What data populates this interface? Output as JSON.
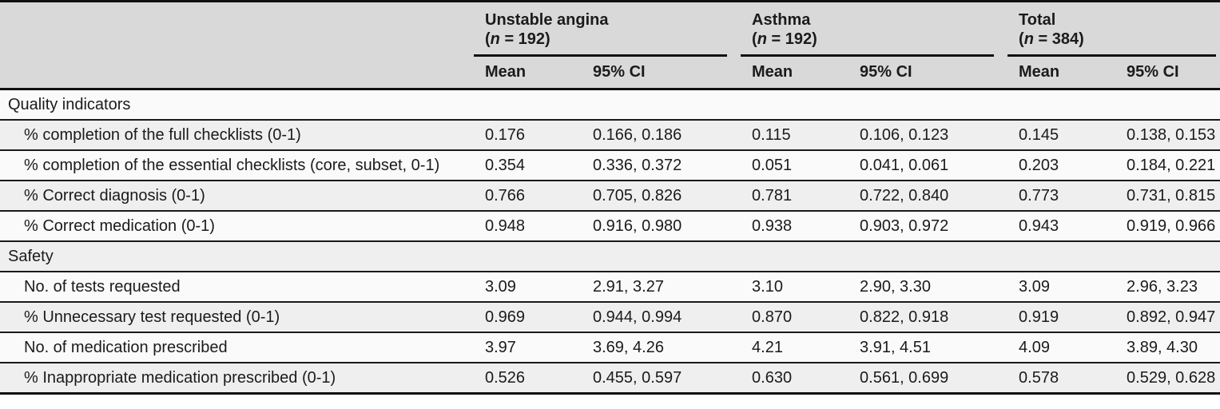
{
  "colors": {
    "header_bg": "#d9d9d9",
    "row_shade_bg": "#efefef",
    "row_light_bg": "#fafafa",
    "rule_color": "#111111",
    "text_color": "#1b1b1b"
  },
  "table": {
    "groups": [
      {
        "title": "Unstable angina",
        "n_prefix": "(",
        "n_italic": "n",
        "n_suffix": " = 192)",
        "mean_label": "Mean",
        "ci_label": "95% CI"
      },
      {
        "title": "Asthma",
        "n_prefix": "(",
        "n_italic": "n",
        "n_suffix": " = 192)",
        "mean_label": "Mean",
        "ci_label": "95% CI"
      },
      {
        "title": "Total",
        "n_prefix": "(",
        "n_italic": "n",
        "n_suffix": " = 384)",
        "mean_label": "Mean",
        "ci_label": "95% CI"
      }
    ],
    "sections": [
      {
        "header": "Quality indicators",
        "rows": [
          {
            "label": "% completion of the full checklists (0-1)",
            "values": [
              "0.176",
              "0.166, 0.186",
              "0.115",
              "0.106, 0.123",
              "0.145",
              "0.138, 0.153"
            ]
          },
          {
            "label": "% completion of the essential checklists (core, subset, 0-1)",
            "values": [
              "0.354",
              "0.336, 0.372",
              "0.051",
              "0.041, 0.061",
              "0.203",
              "0.184, 0.221"
            ]
          },
          {
            "label": "% Correct diagnosis (0-1)",
            "values": [
              "0.766",
              "0.705, 0.826",
              "0.781",
              "0.722, 0.840",
              "0.773",
              "0.731, 0.815"
            ]
          },
          {
            "label": "% Correct medication (0-1)",
            "values": [
              "0.948",
              "0.916, 0.980",
              "0.938",
              "0.903, 0.972",
              "0.943",
              "0.919, 0.966"
            ]
          }
        ]
      },
      {
        "header": "Safety",
        "rows": [
          {
            "label": "No. of tests requested",
            "values": [
              "3.09",
              "2.91, 3.27",
              "3.10",
              "2.90, 3.30",
              "3.09",
              "2.96, 3.23"
            ]
          },
          {
            "label": "% Unnecessary test requested (0-1)",
            "values": [
              "0.969",
              "0.944, 0.994",
              "0.870",
              "0.822, 0.918",
              "0.919",
              "0.892, 0.947"
            ]
          },
          {
            "label": "No. of medication prescribed",
            "values": [
              "3.97",
              "3.69, 4.26",
              "4.21",
              "3.91, 4.51",
              "4.09",
              "3.89, 4.30"
            ]
          },
          {
            "label": "% Inappropriate medication prescribed (0-1)",
            "values": [
              "0.526",
              "0.455, 0.597",
              "0.630",
              "0.561, 0.699",
              "0.578",
              "0.529, 0.628"
            ]
          }
        ]
      }
    ]
  }
}
